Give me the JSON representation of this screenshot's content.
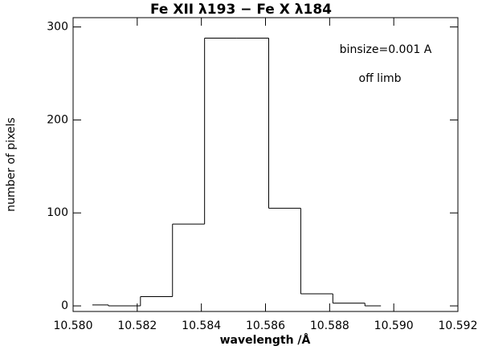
{
  "chart_data": {
    "type": "histogram",
    "title": "Fe XII λ193 − Fe X λ184",
    "xlabel": "wavelength /Å",
    "ylabel": "number of pixels",
    "annotations": [
      "binsize=0.001 A",
      "off limb"
    ],
    "bins": [
      10.5806,
      10.5811,
      10.5821,
      10.5831,
      10.5841,
      10.5851,
      10.5861,
      10.5871,
      10.5881,
      10.5891,
      10.5896
    ],
    "values": [
      1,
      0,
      10,
      88,
      288,
      288,
      105,
      13,
      3,
      0
    ],
    "color": "#000000",
    "xlim": [
      10.58,
      10.592
    ],
    "xticks": [
      {
        "value": 10.58,
        "label": "10.580"
      },
      {
        "value": 10.582,
        "label": "10.582"
      },
      {
        "value": 10.584,
        "label": "10.584"
      },
      {
        "value": 10.586,
        "label": "10.586"
      },
      {
        "value": 10.588,
        "label": "10.588"
      },
      {
        "value": 10.59,
        "label": "10.590"
      },
      {
        "value": 10.592,
        "label": "10.592"
      }
    ],
    "ylim": [
      -6,
      310
    ],
    "yticks": [
      0,
      100,
      200,
      300
    ]
  }
}
